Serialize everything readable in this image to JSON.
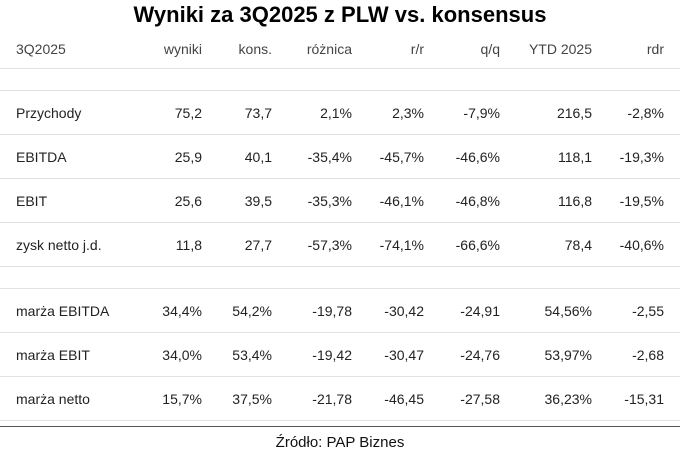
{
  "title": "Wyniki za 3Q2025 z PLW vs. konsensus",
  "table": {
    "headers": [
      "3Q2025",
      "wyniki",
      "kons.",
      "różnica",
      "r/r",
      "q/q",
      "YTD 2025",
      "rdr"
    ],
    "group1": [
      [
        "Przychody",
        "75,2",
        "73,7",
        "2,1%",
        "2,3%",
        "-7,9%",
        "216,5",
        "-2,8%"
      ],
      [
        "EBITDA",
        "25,9",
        "40,1",
        "-35,4%",
        "-45,7%",
        "-46,6%",
        "118,1",
        "-19,3%"
      ],
      [
        "EBIT",
        "25,6",
        "39,5",
        "-35,3%",
        "-46,1%",
        "-46,8%",
        "116,8",
        "-19,5%"
      ],
      [
        "zysk netto j.d.",
        "11,8",
        "27,7",
        "-57,3%",
        "-74,1%",
        "-66,6%",
        "78,4",
        "-40,6%"
      ]
    ],
    "group2": [
      [
        "marża EBITDA",
        "34,4%",
        "54,2%",
        "-19,78",
        "-30,42",
        "-24,91",
        "54,56%",
        "-2,55"
      ],
      [
        "marża EBIT",
        "34,0%",
        "53,4%",
        "-19,42",
        "-30,47",
        "-24,76",
        "53,97%",
        "-2,68"
      ],
      [
        "marża netto",
        "15,7%",
        "37,5%",
        "-21,78",
        "-46,45",
        "-27,58",
        "36,23%",
        "-15,31"
      ]
    ]
  },
  "source": "Źródło: PAP Biznes"
}
